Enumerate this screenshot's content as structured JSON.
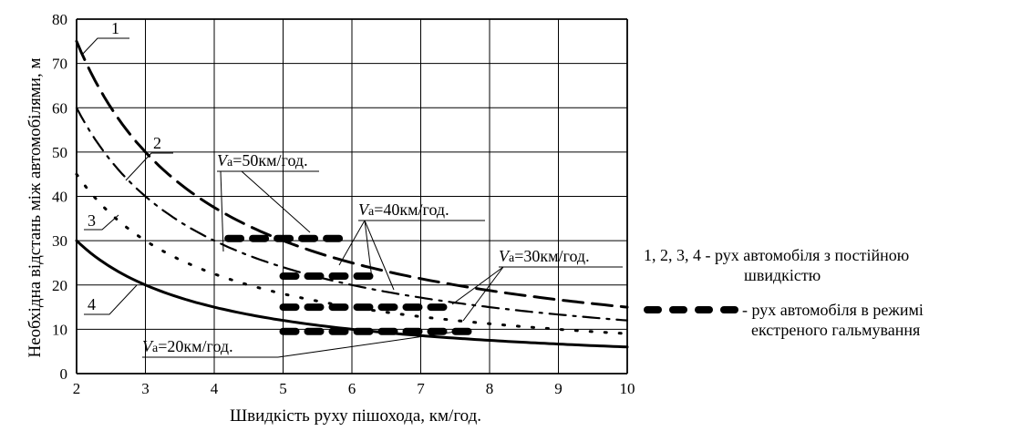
{
  "chart_data": {
    "type": "line",
    "xlabel": "Швидкість руху пішохода, км/год.",
    "ylabel": "Необхідна відстань між автомобілями, м",
    "xlim": [
      2,
      10
    ],
    "ylim": [
      0,
      80
    ],
    "xticks": [
      "2",
      "3",
      "4",
      "5",
      "6",
      "7",
      "8",
      "9",
      "10"
    ],
    "yticks": [
      "0",
      "10",
      "20",
      "30",
      "40",
      "50",
      "60",
      "70",
      "80"
    ],
    "grid": true,
    "series": [
      {
        "name": "1",
        "style": "long-dash",
        "x": [
          2,
          3,
          4,
          5,
          6,
          7,
          8,
          9,
          10
        ],
        "y": [
          75,
          50,
          37.5,
          30,
          25,
          21.4,
          18.8,
          16.7,
          15
        ]
      },
      {
        "name": "2",
        "style": "dash-dot",
        "x": [
          2,
          3,
          4,
          5,
          6,
          7,
          8,
          9,
          10
        ],
        "y": [
          60,
          40,
          30,
          24,
          20,
          17.1,
          15,
          13.3,
          12
        ]
      },
      {
        "name": "3",
        "style": "dotted",
        "x": [
          2,
          3,
          4,
          5,
          6,
          7,
          8,
          9,
          10
        ],
        "y": [
          45,
          30,
          22.5,
          18,
          15,
          12.9,
          11.3,
          10,
          9
        ]
      },
      {
        "name": "4",
        "style": "solid",
        "x": [
          2,
          3,
          4,
          5,
          6,
          7,
          8,
          9,
          10
        ],
        "y": [
          30,
          20,
          15,
          12,
          10,
          8.6,
          7.5,
          6.7,
          6
        ]
      }
    ],
    "braking_segments": [
      {
        "label": "50км/год.",
        "x": [
          4.2,
          5.9
        ],
        "y": 30.5
      },
      {
        "label": "40км/год.",
        "x": [
          5.0,
          6.4
        ],
        "y": 22
      },
      {
        "label": "30км/год.",
        "x": [
          5.0,
          7.4
        ],
        "y": 15
      },
      {
        "label": "20км/год.",
        "x": [
          5.0,
          7.7
        ],
        "y": 9.5
      }
    ],
    "annotation_prefix": "V",
    "annotation_sub": "a",
    "curve_labels": [
      "1",
      "2",
      "3",
      "4"
    ],
    "legend": {
      "line1": "1, 2, 3, 4  - рух автомобіля з постійною",
      "line2": "швидкістю",
      "line3": "- рух автомобіля в режимі",
      "line4": "екстреного гальмування"
    }
  }
}
